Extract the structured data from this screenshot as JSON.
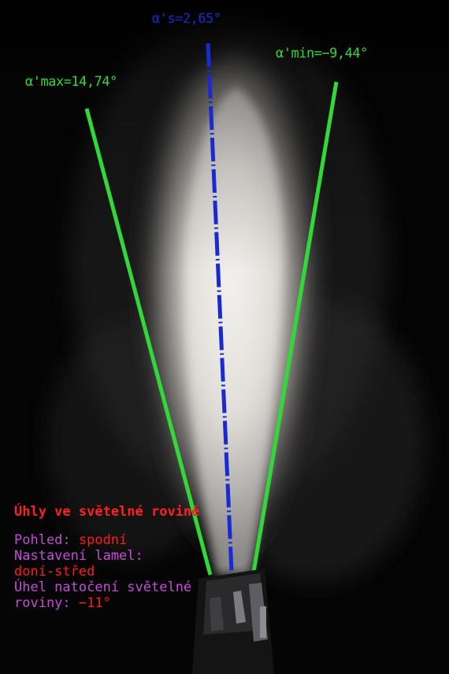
{
  "colors": {
    "green": "#32d838",
    "blue": "#1b2ad0",
    "red": "#ff1a1a",
    "magenta": "#c64bd8",
    "title_red": "#ff2020"
  },
  "labels": {
    "alpha_s": "α's=2,65°",
    "alpha_min": "α'min=−9,44°",
    "alpha_max": "α'max=14,74°"
  },
  "panel": {
    "title": "Úhly ve světelné rovině",
    "view_label": "Pohled:",
    "view_value": "spodní",
    "lamel_label": "Nastavení lamel:",
    "lamel_value": "doní-střed",
    "angle_label": "Úhel natočení světelné roviny:",
    "angle_value": "−11°"
  }
}
